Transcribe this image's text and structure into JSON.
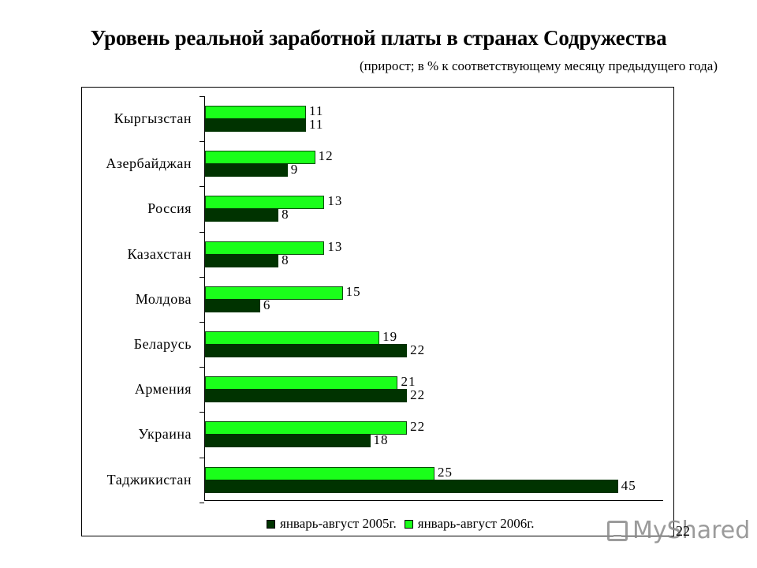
{
  "header": {
    "title": "Уровень реальной заработной платы в странах Содружества",
    "subtitle": "(прирост; в % к соответствующему месяцу предыдущего года)"
  },
  "legend": {
    "items": [
      {
        "label": "январь-август 2005г.",
        "color": "#003300"
      },
      {
        "label": "январь-август 2006г.",
        "color": "#1aff1a"
      }
    ]
  },
  "watermark": {
    "text": "MyShared"
  },
  "page_number": "22",
  "categories": [
    {
      "name": "Кыргызстан",
      "v2006": "11",
      "v2005": "11"
    },
    {
      "name": "Азербайджан",
      "v2006": "12",
      "v2005": "9"
    },
    {
      "name": "Россия",
      "v2006": "13",
      "v2005": "8"
    },
    {
      "name": "Казахстан",
      "v2006": "13",
      "v2005": "8"
    },
    {
      "name": "Молдова",
      "v2006": "15",
      "v2005": "6"
    },
    {
      "name": "Беларусь",
      "v2006": "19",
      "v2005": "22"
    },
    {
      "name": "Армения",
      "v2006": "21",
      "v2005": "22"
    },
    {
      "name": "Украина",
      "v2006": "22",
      "v2005": "18"
    },
    {
      "name": "Таджикистан",
      "v2006": "25",
      "v2005": "45"
    }
  ],
  "chart_data": {
    "type": "bar",
    "orientation": "horizontal",
    "title": "Уровень реальной заработной платы в странах Содружества",
    "subtitle": "(прирост; в % к соответствующему месяцу предыдущего года)",
    "categories": [
      "Кыргызстан",
      "Азербайджан",
      "Россия",
      "Казахстан",
      "Молдова",
      "Беларусь",
      "Армения",
      "Украина",
      "Таджикистан"
    ],
    "series": [
      {
        "name": "январь-август 2005г.",
        "color": "#003300",
        "values": [
          11,
          9,
          8,
          8,
          6,
          22,
          22,
          18,
          45
        ]
      },
      {
        "name": "январь-август 2006г.",
        "color": "#1aff1a",
        "values": [
          11,
          12,
          13,
          13,
          15,
          19,
          21,
          22,
          25
        ]
      }
    ],
    "xlabel": "",
    "ylabel": "",
    "xlim": [
      0,
      48
    ],
    "grid": false,
    "data_labels": true,
    "legend_position": "bottom"
  }
}
